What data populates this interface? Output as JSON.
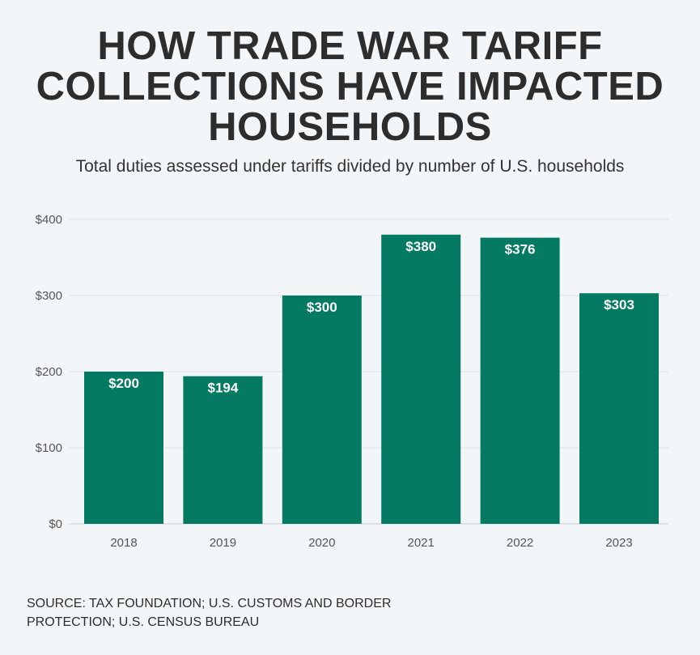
{
  "header": {
    "title_lines": [
      "HOW TRADE WAR TARIFF",
      "COLLECTIONS HAVE IMPACTED",
      "HOUSEHOLDS"
    ],
    "subtitle": "Total duties assessed under tariffs divided by number of U.S. households"
  },
  "footer": {
    "source_line1": "SOURCE: TAX FOUNDATION; U.S. CUSTOMS AND BORDER",
    "source_line2": "PROTECTION; U.S. CENSUS BUREAU"
  },
  "colors": {
    "bar": "#057a62",
    "grid": "#dde2e7",
    "background": "#f3f6f9"
  },
  "chart_data": {
    "type": "bar",
    "title": "HOW TRADE WAR TARIFF COLLECTIONS HAVE IMPACTED HOUSEHOLDS",
    "subtitle": "Total duties assessed under tariffs divided by number of U.S. households",
    "xlabel": "",
    "ylabel": "",
    "categories": [
      "2018",
      "2019",
      "2020",
      "2021",
      "2022",
      "2023"
    ],
    "values": [
      200,
      194,
      300,
      380,
      376,
      303
    ],
    "value_labels": [
      "$200",
      "$194",
      "$300",
      "$380",
      "$376",
      "$303"
    ],
    "ylim": [
      0,
      400
    ],
    "yticks": [
      0,
      100,
      200,
      300,
      400
    ],
    "ytick_labels": [
      "$0",
      "$100",
      "$200",
      "$300",
      "$400"
    ],
    "grid": true,
    "legend": "none"
  }
}
